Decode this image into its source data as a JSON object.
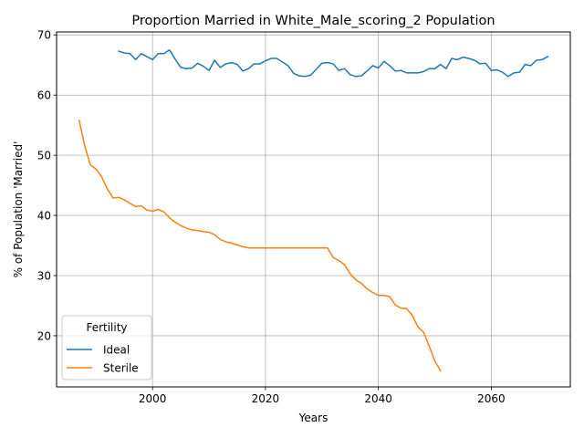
{
  "chart_data": {
    "type": "line",
    "title": "Proportion Married in White_Male_scoring_2 Population",
    "xlabel": "Years",
    "ylabel": "% of Population 'Married'",
    "xlim": [
      1983,
      2074
    ],
    "ylim": [
      11.5,
      70.5
    ],
    "xticks": [
      2000,
      2020,
      2040,
      2060
    ],
    "yticks": [
      20,
      30,
      40,
      50,
      60,
      70
    ],
    "grid": true,
    "legend": {
      "title": "Fertility",
      "placement": "lower-left"
    },
    "series": [
      {
        "name": "Ideal",
        "color": "#1f77b4",
        "x": [
          1994,
          1995,
          1996,
          1997,
          1998,
          1999,
          2000,
          2001,
          2002,
          2003,
          2004,
          2005,
          2006,
          2007,
          2008,
          2009,
          2010,
          2011,
          2012,
          2013,
          2014,
          2015,
          2016,
          2017,
          2018,
          2019,
          2020,
          2021,
          2022,
          2023,
          2024,
          2025,
          2026,
          2027,
          2028,
          2029,
          2030,
          2031,
          2032,
          2033,
          2034,
          2035,
          2036,
          2037,
          2038,
          2039,
          2040,
          2041,
          2042,
          2043,
          2044,
          2045,
          2046,
          2047,
          2048,
          2049,
          2050,
          2051,
          2052,
          2053,
          2054,
          2055,
          2056,
          2057,
          2058,
          2059,
          2060,
          2061,
          2062,
          2063,
          2064,
          2065,
          2066,
          2067,
          2068,
          2069,
          2070
        ],
        "y": [
          67.3,
          67.0,
          66.9,
          65.9,
          66.9,
          66.4,
          65.9,
          66.9,
          66.9,
          67.5,
          66.0,
          64.6,
          64.4,
          64.5,
          65.3,
          64.8,
          64.1,
          65.8,
          64.6,
          65.2,
          65.4,
          65.1,
          64.0,
          64.4,
          65.2,
          65.2,
          65.7,
          66.1,
          66.1,
          65.5,
          64.9,
          63.6,
          63.2,
          63.1,
          63.3,
          64.3,
          65.3,
          65.4,
          65.2,
          64.1,
          64.4,
          63.4,
          63.1,
          63.2,
          64.0,
          64.9,
          64.5,
          65.6,
          64.9,
          64.0,
          64.1,
          63.7,
          63.7,
          63.7,
          63.9,
          64.4,
          64.4,
          65.1,
          64.4,
          66.1,
          65.9,
          66.3,
          66.1,
          65.8,
          65.2,
          65.3,
          64.1,
          64.2,
          63.8,
          63.1,
          63.7,
          63.8,
          65.1,
          64.9,
          65.8,
          65.9,
          66.4
        ]
      },
      {
        "name": "Sterile",
        "color": "#ff7f0e",
        "x": [
          1987,
          1988,
          1989,
          1990,
          1991,
          1992,
          1993,
          1994,
          1995,
          1996,
          1997,
          1998,
          1999,
          2000,
          2001,
          2002,
          2003,
          2004,
          2005,
          2006,
          2007,
          2008,
          2009,
          2010,
          2011,
          2012,
          2013,
          2014,
          2015,
          2016,
          2017,
          2018,
          2019,
          2020,
          2021,
          2022,
          2023,
          2024,
          2025,
          2026,
          2027,
          2028,
          2029,
          2030,
          2031,
          2032,
          2033,
          2034,
          2035,
          2036,
          2037,
          2038,
          2039,
          2040,
          2041,
          2042,
          2043,
          2044,
          2045,
          2046,
          2047,
          2048,
          2049,
          2050,
          2051
        ],
        "y": [
          55.8,
          51.5,
          48.4,
          47.7,
          46.4,
          44.4,
          42.9,
          43.0,
          42.6,
          42.0,
          41.5,
          41.6,
          40.9,
          40.7,
          41.0,
          40.6,
          39.6,
          38.9,
          38.3,
          37.9,
          37.6,
          37.5,
          37.3,
          37.2,
          36.8,
          36.0,
          35.6,
          35.4,
          35.1,
          34.8,
          34.6,
          34.6,
          34.6,
          34.6,
          34.6,
          34.6,
          34.6,
          34.6,
          34.6,
          34.6,
          34.6,
          34.6,
          34.6,
          34.6,
          34.6,
          33.0,
          32.5,
          31.8,
          30.3,
          29.3,
          28.7,
          27.8,
          27.2,
          26.7,
          26.7,
          26.5,
          25.1,
          24.6,
          24.5,
          23.4,
          21.5,
          20.6,
          18.3,
          15.8,
          14.2
        ]
      }
    ]
  }
}
